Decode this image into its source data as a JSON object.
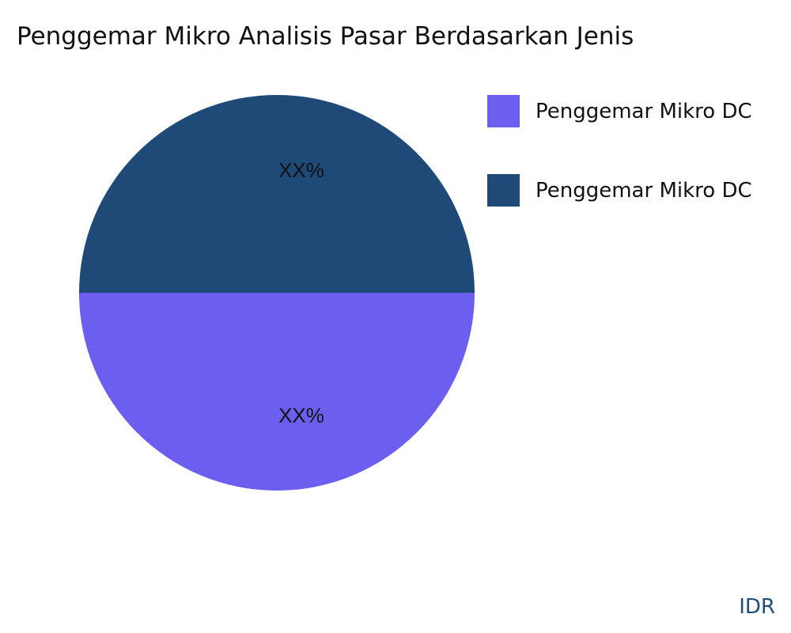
{
  "chart_data": {
    "type": "pie",
    "title": "Penggemar Mikro Analisis Pasar Berdasarkan Jenis",
    "slices": [
      {
        "name": "Penggemar Mikro DC",
        "value": 50,
        "label": "XX%",
        "color": "#6c5ff0"
      },
      {
        "name": "Penggemar Mikro DC",
        "value": 50,
        "label": "XX%",
        "color": "#1f4a78"
      }
    ],
    "legend_position": "right"
  },
  "brand": "IDR"
}
